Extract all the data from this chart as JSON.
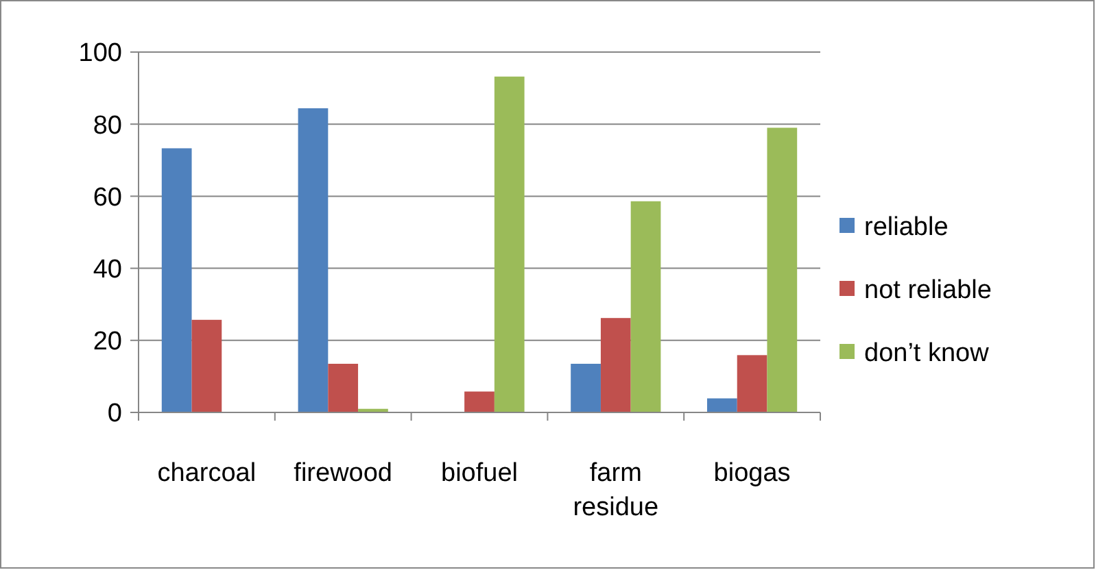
{
  "chart_data": {
    "type": "bar",
    "categories": [
      "charcoal",
      "firewood",
      "biofuel",
      "farm residue",
      "biogas"
    ],
    "series": [
      {
        "name": "reliable",
        "color": "#4f81bd",
        "values": [
          73.3,
          84.4,
          0,
          13.5,
          3.9
        ]
      },
      {
        "name": "not reliable",
        "color": "#c0504d",
        "values": [
          25.7,
          13.5,
          5.8,
          26.2,
          15.9
        ]
      },
      {
        "name": "don’t know",
        "color": "#9bbb59",
        "values": [
          0,
          1,
          93.2,
          58.6,
          79
        ]
      }
    ],
    "ylim": [
      0,
      100
    ],
    "yticks": [
      0,
      20,
      40,
      60,
      80,
      100
    ],
    "grid": "y",
    "legend": "right"
  }
}
